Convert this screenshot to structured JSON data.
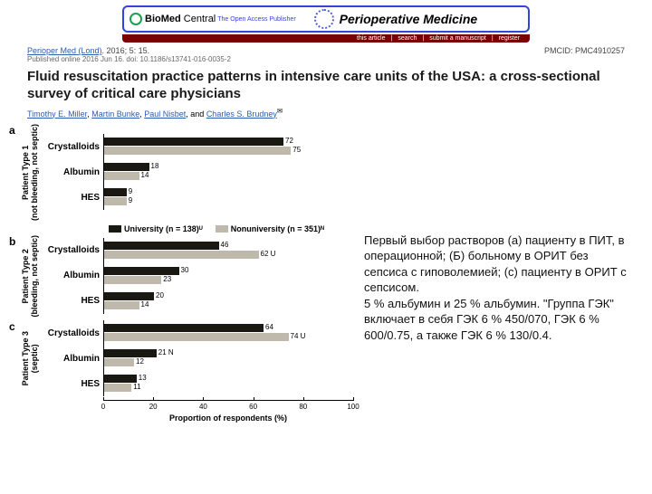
{
  "banner": {
    "biomed_bold": "BioMed",
    "biomed_rest": " Central",
    "biomed_sub": "The Open Access Publisher",
    "journal": "Perioperative Medicine",
    "nav_items": [
      "this article",
      "search",
      "submit a manuscript",
      "register"
    ]
  },
  "citation": {
    "journal_link": "Perioper Med (Lond)",
    "citation_rest": ". 2016; 5: 15.",
    "doi": "Published online 2016 Jun 16. doi: 10.1186/s13741-016-0035-2",
    "pmcid": "PMCID: PMC4910257"
  },
  "title": "Fluid resuscitation practice patterns in intensive care units of the USA: a cross-sectional survey of critical care physicians",
  "authors": [
    "Timothy E. Miller",
    "Martin Bunke",
    "Paul Nisbet",
    "Charles S. Brudney"
  ],
  "author_sup": "✉",
  "chart": {
    "xmax": 100,
    "xtick_step": 20,
    "xlabel": "Proportion of respondents (%)",
    "colors": {
      "dark": "#1a1812",
      "light": "#bfb9ac"
    },
    "legend": {
      "dark": "University (n = 138)ᵁ",
      "light": "Nonuniversity (n = 351)ᴺ"
    },
    "panels": [
      {
        "letter": "a",
        "ylabel": "Patient Type 1\n(not bleeding, not septic)",
        "rows": [
          {
            "label": "Crystalloids",
            "dark": 72,
            "light": 75,
            "dark_txt": "72",
            "light_txt": "75"
          },
          {
            "label": "Albumin",
            "dark": 18,
            "light": 14,
            "dark_txt": "18",
            "light_txt": "14"
          },
          {
            "label": "HES",
            "dark": 9,
            "light": 9,
            "dark_txt": "9",
            "light_txt": "9"
          }
        ]
      },
      {
        "letter": "b",
        "ylabel": "Patient Type 2\n(bleeding, not septic)",
        "rows": [
          {
            "label": "Crystalloids",
            "dark": 46,
            "light": 62,
            "dark_txt": "46",
            "light_txt": "62 U"
          },
          {
            "label": "Albumin",
            "dark": 30,
            "light": 23,
            "dark_txt": "30",
            "light_txt": "23"
          },
          {
            "label": "HES",
            "dark": 20,
            "light": 14,
            "dark_txt": "20",
            "light_txt": "14"
          }
        ]
      },
      {
        "letter": "c",
        "ylabel": "Patient Type 3\n(septic)",
        "rows": [
          {
            "label": "Crystalloids",
            "dark": 64,
            "light": 74,
            "dark_txt": "64",
            "light_txt": "74 U"
          },
          {
            "label": "Albumin",
            "dark": 21,
            "light": 12,
            "dark_txt": "21 N",
            "light_txt": "12"
          },
          {
            "label": "HES",
            "dark": 13,
            "light": 11,
            "dark_txt": "13",
            "light_txt": "11"
          }
        ]
      }
    ]
  },
  "caption": "Первый выбор растворов (а) пациенту в ПИТ, в операционной; (Б) больному в ОРИТ без сепсиса с гиповолемией; (с) пациенту в ОРИТ с сепсисом.\n5 % альбумин и 25 % альбумин. \"Группа ГЭК\" включает в себя ГЭК 6 % 450/070, ГЭК 6 % 600/0.75, а также ГЭК 6 % 130/0.4."
}
